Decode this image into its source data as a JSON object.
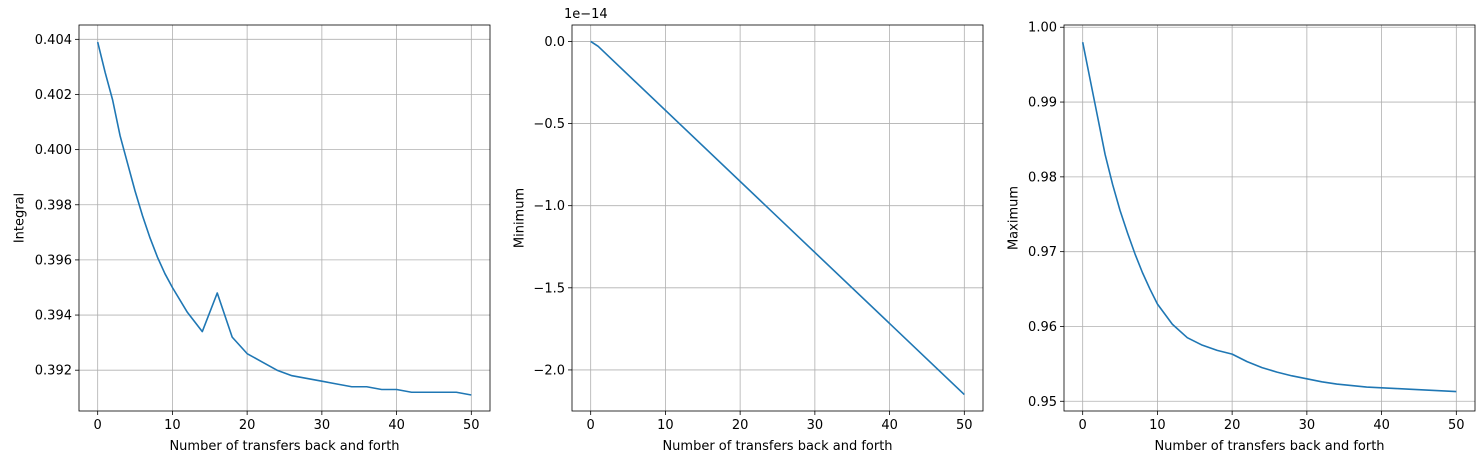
{
  "chart_data": [
    {
      "type": "line",
      "xlabel": "Number of transfers back and forth",
      "ylabel": "Integral",
      "offset_label": "",
      "grid": true,
      "xlim": [
        -2.5,
        52.5
      ],
      "ylim": [
        0.39052,
        0.40452
      ],
      "x_ticks": [
        0,
        10,
        20,
        30,
        40,
        50
      ],
      "y_ticks": [
        0.392,
        0.394,
        0.396,
        0.398,
        0.4,
        0.402,
        0.404
      ],
      "y_tick_labels": [
        "0.392",
        "0.394",
        "0.396",
        "0.398",
        "0.400",
        "0.402",
        "0.404"
      ],
      "line_color": "#1f77b4",
      "series": [
        {
          "x": [
            0,
            1,
            2,
            3,
            4,
            5,
            6,
            7,
            8,
            9,
            10,
            12,
            14,
            16,
            18,
            20,
            22,
            24,
            26,
            28,
            30,
            32,
            34,
            36,
            38,
            40,
            42,
            44,
            46,
            48,
            50
          ],
          "values": [
            0.4039,
            0.4028,
            0.4018,
            0.4005,
            0.3995,
            0.3985,
            0.3976,
            0.3968,
            0.3961,
            0.3955,
            0.395,
            0.3941,
            0.3934,
            0.3948,
            0.3932,
            0.3926,
            0.3923,
            0.392,
            0.3918,
            0.3917,
            0.3916,
            0.3915,
            0.3914,
            0.3914,
            0.3913,
            0.3913,
            0.3912,
            0.3912,
            0.3912,
            0.3912,
            0.3911
          ]
        }
      ]
    },
    {
      "type": "line",
      "xlabel": "Number of transfers back and forth",
      "ylabel": "Minimum",
      "offset_label": "1e−14",
      "grid": true,
      "xlim": [
        -2.5,
        52.5
      ],
      "ylim": [
        -2.25,
        0.1
      ],
      "x_ticks": [
        0,
        10,
        20,
        30,
        40,
        50
      ],
      "y_ticks": [
        -2.0,
        -1.5,
        -1.0,
        -0.5,
        0.0
      ],
      "y_tick_labels": [
        "−2.0",
        "−1.5",
        "−1.0",
        "−0.5",
        "0.0"
      ],
      "line_color": "#1f77b4",
      "series": [
        {
          "x": [
            0,
            1,
            50
          ],
          "values": [
            0.0,
            -0.03,
            -2.15
          ]
        }
      ]
    },
    {
      "type": "line",
      "xlabel": "Number of transfers back and forth",
      "ylabel": "Maximum",
      "offset_label": "",
      "grid": true,
      "xlim": [
        -2.5,
        52.5
      ],
      "ylim": [
        0.9487,
        1.0003
      ],
      "x_ticks": [
        0,
        10,
        20,
        30,
        40,
        50
      ],
      "y_ticks": [
        0.95,
        0.96,
        0.97,
        0.98,
        0.99,
        1.0
      ],
      "y_tick_labels": [
        "0.95",
        "0.96",
        "0.97",
        "0.98",
        "0.99",
        "1.00"
      ],
      "line_color": "#1f77b4",
      "series": [
        {
          "x": [
            0,
            1,
            2,
            3,
            4,
            5,
            6,
            7,
            8,
            9,
            10,
            12,
            14,
            16,
            18,
            20,
            22,
            24,
            26,
            28,
            30,
            32,
            34,
            36,
            38,
            40,
            42,
            44,
            46,
            48,
            50
          ],
          "values": [
            0.998,
            0.993,
            0.988,
            0.983,
            0.979,
            0.9755,
            0.9725,
            0.9697,
            0.9672,
            0.965,
            0.963,
            0.9603,
            0.9585,
            0.9575,
            0.9568,
            0.9563,
            0.9553,
            0.9545,
            0.9539,
            0.9534,
            0.953,
            0.9526,
            0.9523,
            0.9521,
            0.9519,
            0.9518,
            0.9517,
            0.9516,
            0.9515,
            0.9514,
            0.9513
          ]
        }
      ]
    }
  ]
}
